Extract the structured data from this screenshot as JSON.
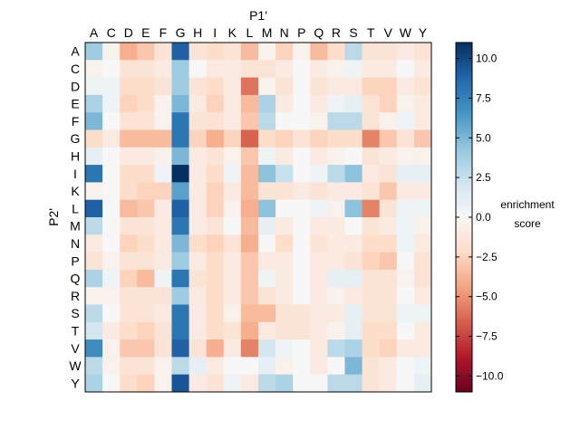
{
  "chart_data": {
    "type": "heatmap",
    "xlabel": "P1'",
    "ylabel": "P2'",
    "x_categories": [
      "A",
      "C",
      "D",
      "E",
      "F",
      "G",
      "H",
      "I",
      "K",
      "L",
      "M",
      "N",
      "P",
      "Q",
      "R",
      "S",
      "T",
      "V",
      "W",
      "Y"
    ],
    "y_categories": [
      "A",
      "C",
      "D",
      "E",
      "F",
      "G",
      "H",
      "I",
      "K",
      "L",
      "M",
      "N",
      "P",
      "Q",
      "R",
      "S",
      "T",
      "V",
      "W",
      "Y"
    ],
    "colorbar": {
      "label": [
        "enrichment",
        "score"
      ],
      "range": [
        -11,
        11
      ],
      "ticks": [
        10.0,
        7.5,
        5.0,
        2.5,
        0.0,
        -2.5,
        -5.0,
        -7.5,
        -10.0
      ],
      "tick_labels": [
        "10.0",
        "7.5",
        "5.0",
        "2.5",
        "0.0",
        "−2.5",
        "−5.0",
        "−7.5",
        "−10.0"
      ],
      "colormap": "RdBu"
    },
    "values": [
      [
        4.0,
        -0.5,
        -4.0,
        -3.0,
        -1.5,
        9.0,
        -1.5,
        -2.0,
        -1.5,
        -3.5,
        -0.5,
        -2.5,
        -0.5,
        -3.5,
        -2.0,
        3.0,
        -1.5,
        -1.5,
        -1.0,
        -1.5
      ],
      [
        -0.5,
        0.0,
        -1.5,
        -1.5,
        -1.0,
        4.0,
        0.0,
        -1.0,
        -1.0,
        -1.5,
        -1.5,
        -1.0,
        0.0,
        -1.0,
        -0.5,
        0.5,
        -1.0,
        -1.0,
        0.0,
        -1.0
      ],
      [
        0.5,
        0.5,
        -2.0,
        -2.0,
        -1.5,
        4.0,
        -1.5,
        -2.0,
        -1.0,
        -6.0,
        -0.5,
        -1.5,
        0.0,
        -1.5,
        -1.0,
        -1.0,
        -2.5,
        -2.5,
        -1.0,
        -1.5
      ],
      [
        3.5,
        0.5,
        -2.5,
        -2.0,
        -0.5,
        5.0,
        -1.0,
        -2.5,
        -1.0,
        -3.5,
        3.5,
        -1.0,
        0.0,
        -1.0,
        0.5,
        1.0,
        -1.5,
        -2.5,
        -0.5,
        -1.0
      ],
      [
        5.0,
        0.0,
        -1.5,
        -1.5,
        -0.5,
        8.0,
        -1.5,
        -1.5,
        -1.0,
        -3.0,
        3.0,
        0.0,
        0.0,
        -0.5,
        3.0,
        3.0,
        -1.5,
        -0.5,
        0.5,
        -1.0
      ],
      [
        -2.0,
        -1.0,
        -3.5,
        -3.5,
        -3.5,
        8.0,
        -2.5,
        -4.0,
        -2.5,
        -6.5,
        -2.0,
        -2.5,
        -1.5,
        -2.5,
        -2.0,
        -2.0,
        -5.5,
        -3.0,
        -1.5,
        -3.0
      ],
      [
        1.0,
        0.0,
        -1.0,
        -1.0,
        -0.5,
        5.0,
        -1.0,
        -1.5,
        -0.5,
        -3.0,
        0.5,
        -1.0,
        0.0,
        -1.0,
        -0.5,
        0.0,
        -1.5,
        -1.0,
        -0.5,
        -0.5
      ],
      [
        8.0,
        0.0,
        -2.0,
        -2.0,
        0.5,
        11.0,
        -1.0,
        -2.0,
        0.5,
        -3.5,
        4.5,
        2.5,
        0.0,
        0.5,
        3.0,
        4.5,
        -1.0,
        -1.5,
        1.0,
        1.0
      ],
      [
        -0.5,
        0.0,
        -2.0,
        -2.5,
        -2.5,
        6.0,
        -1.0,
        -2.5,
        -1.0,
        -3.5,
        -1.5,
        -1.5,
        -1.0,
        -1.5,
        -1.0,
        -1.0,
        -1.5,
        -3.0,
        -1.0,
        -1.0
      ],
      [
        9.0,
        0.0,
        -3.5,
        -3.0,
        -1.0,
        9.0,
        -1.0,
        -2.5,
        -0.5,
        -4.0,
        4.5,
        0.0,
        0.0,
        0.5,
        -0.5,
        4.5,
        -5.5,
        -1.5,
        0.5,
        0.5
      ],
      [
        3.0,
        0.0,
        -1.5,
        -1.5,
        -1.0,
        8.0,
        -1.0,
        -1.5,
        0.0,
        -3.5,
        1.0,
        -1.0,
        0.0,
        -1.0,
        -1.0,
        0.0,
        -1.5,
        -1.0,
        0.5,
        -0.5
      ],
      [
        -1.0,
        0.0,
        -2.5,
        -2.0,
        -1.0,
        5.0,
        -2.0,
        -2.5,
        -1.5,
        -4.0,
        0.0,
        -2.0,
        0.0,
        -1.5,
        -1.0,
        -1.0,
        -2.0,
        -2.0,
        0.5,
        -1.0
      ],
      [
        -1.5,
        -0.5,
        -1.5,
        -1.5,
        -1.0,
        4.0,
        -1.0,
        -2.0,
        -1.0,
        -3.0,
        -1.0,
        -1.0,
        0.0,
        -1.0,
        -1.0,
        -1.5,
        -2.5,
        -3.0,
        0.0,
        -1.5
      ],
      [
        3.5,
        0.5,
        -2.5,
        -3.5,
        0.5,
        8.0,
        -1.5,
        -2.0,
        -1.0,
        -3.0,
        0.5,
        -1.0,
        0.0,
        -1.0,
        1.0,
        1.0,
        -1.5,
        -1.5,
        -0.5,
        -1.5
      ],
      [
        -0.5,
        -0.5,
        -1.5,
        -1.5,
        -1.5,
        4.0,
        -1.0,
        -2.0,
        -1.0,
        -3.0,
        -1.5,
        -1.0,
        0.0,
        -1.0,
        -0.5,
        -1.0,
        -1.5,
        -1.5,
        0.0,
        -1.0
      ],
      [
        3.0,
        0.0,
        -1.5,
        -1.5,
        -1.0,
        8.0,
        -1.0,
        -2.0,
        -0.5,
        -3.5,
        -3.5,
        -1.5,
        -1.5,
        -1.0,
        -1.0,
        1.0,
        -1.5,
        -1.5,
        0.5,
        0.5
      ],
      [
        2.0,
        -1.0,
        -2.0,
        -2.5,
        -1.5,
        8.0,
        -1.0,
        -2.0,
        -1.5,
        -4.0,
        -1.0,
        -1.5,
        -1.5,
        -1.0,
        -0.5,
        1.0,
        -2.0,
        -2.0,
        0.0,
        -1.0
      ],
      [
        7.0,
        -0.5,
        -3.0,
        -3.0,
        -1.5,
        9.0,
        -1.5,
        -4.0,
        -1.0,
        -5.5,
        2.0,
        0.5,
        0.0,
        -1.0,
        3.0,
        3.5,
        -2.0,
        -2.5,
        -1.0,
        -1.0
      ],
      [
        3.0,
        -0.5,
        -1.5,
        -1.5,
        -0.5,
        3.0,
        1.0,
        -1.0,
        0.0,
        0.0,
        1.0,
        -0.5,
        0.0,
        -1.0,
        0.0,
        5.0,
        -1.5,
        -1.0,
        0.0,
        0.5
      ],
      [
        3.5,
        0.0,
        -2.0,
        -2.5,
        -0.5,
        9.5,
        -1.0,
        -1.5,
        0.5,
        -1.0,
        3.0,
        3.5,
        0.0,
        0.0,
        3.0,
        3.0,
        -1.5,
        -1.0,
        0.0,
        1.0
      ]
    ]
  }
}
